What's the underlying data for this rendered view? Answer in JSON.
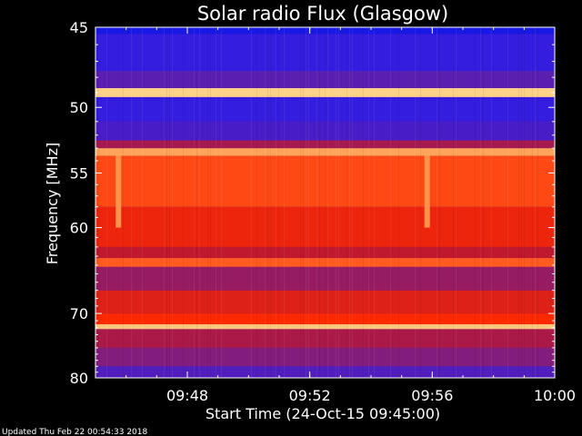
{
  "chart_data": {
    "type": "heatmap",
    "title": "Solar radio Flux (Glasgow)",
    "xlabel": "Start Time (24-Oct-15 09:45:00)",
    "ylabel": "Frequency [MHz]",
    "x_unit": "time",
    "x_range": [
      "09:45:00",
      "10:00:00"
    ],
    "x_ticks": [
      "09:48",
      "09:52",
      "09:56",
      "10:00"
    ],
    "y_range": [
      45,
      80
    ],
    "y_ticks": [
      45,
      50,
      55,
      60,
      70,
      80
    ],
    "y_scale": "reciprocal",
    "colormap": [
      "#000000",
      "#1c1cff",
      "#6a1e9c",
      "#c0182e",
      "#ff2a00",
      "#ff8a40",
      "#ffe8a0"
    ],
    "bands": [
      {
        "f_from": 45.0,
        "f_to": 45.4,
        "level": 0.15
      },
      {
        "f_from": 45.4,
        "f_to": 47.6,
        "level": 0.22
      },
      {
        "f_from": 47.6,
        "f_to": 48.7,
        "level": 0.3
      },
      {
        "f_from": 48.7,
        "f_to": 49.3,
        "level": 0.96
      },
      {
        "f_from": 49.3,
        "f_to": 51.0,
        "level": 0.22
      },
      {
        "f_from": 51.0,
        "f_to": 52.4,
        "level": 0.26
      },
      {
        "f_from": 52.4,
        "f_to": 53.0,
        "level": 0.45
      },
      {
        "f_from": 53.0,
        "f_to": 53.6,
        "level": 0.88
      },
      {
        "f_from": 53.6,
        "f_to": 58.0,
        "level": 0.72
      },
      {
        "f_from": 58.0,
        "f_to": 62.0,
        "level": 0.62
      },
      {
        "f_from": 62.0,
        "f_to": 63.2,
        "level": 0.5
      },
      {
        "f_from": 63.2,
        "f_to": 64.2,
        "level": 0.75
      },
      {
        "f_from": 64.2,
        "f_to": 67.0,
        "level": 0.42
      },
      {
        "f_from": 67.0,
        "f_to": 70.0,
        "level": 0.58
      },
      {
        "f_from": 70.0,
        "f_to": 71.5,
        "level": 0.66
      },
      {
        "f_from": 71.5,
        "f_to": 72.2,
        "level": 0.94
      },
      {
        "f_from": 72.2,
        "f_to": 75.0,
        "level": 0.46
      },
      {
        "f_from": 75.0,
        "f_to": 78.0,
        "level": 0.38
      },
      {
        "f_from": 78.0,
        "f_to": 80.0,
        "level": 0.28
      }
    ],
    "events": [
      {
        "time": "09:45:45",
        "f_from": 53.6,
        "f_to": 60.0,
        "level": 0.85
      },
      {
        "time": "09:55:50",
        "f_from": 53.6,
        "f_to": 60.0,
        "level": 0.85
      }
    ]
  },
  "footer": {
    "updated": "Updated Thu Feb 22 00:54:33 2018"
  }
}
